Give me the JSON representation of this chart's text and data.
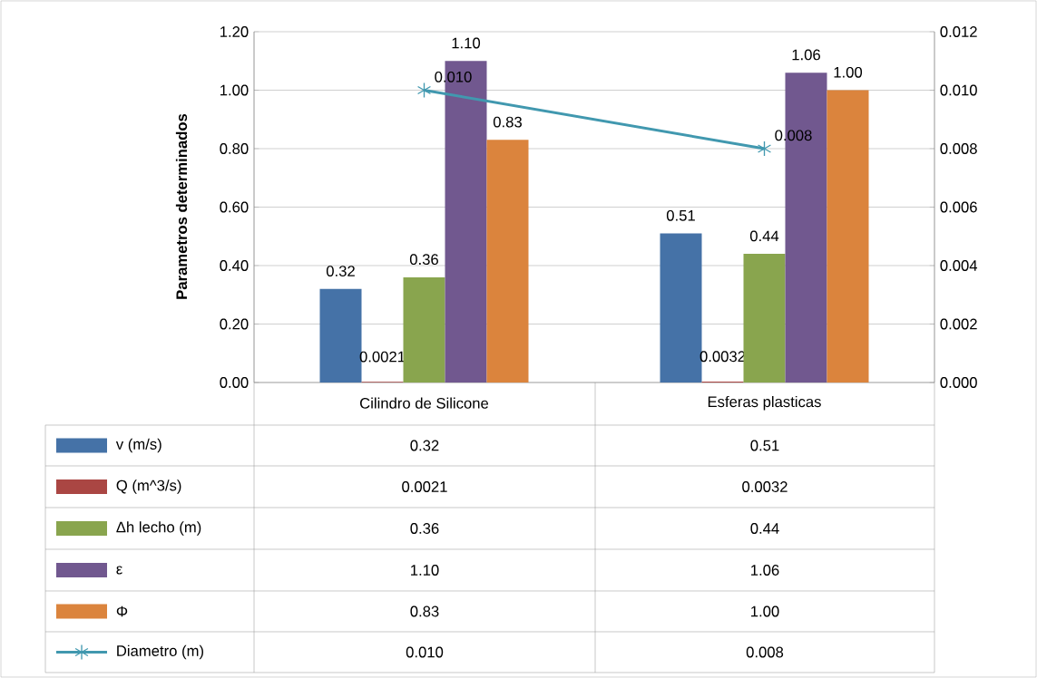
{
  "chart_data": {
    "type": "bar",
    "ylabel": "Parametros determinados",
    "categories": [
      "Cilindro de Silicone",
      "Esferas plasticas"
    ],
    "series": [
      {
        "name": "v (m/s)",
        "color": "#4572a7",
        "values": [
          0.32,
          0.51
        ],
        "value_labels": [
          "0.32",
          "0.51"
        ]
      },
      {
        "name": "Q (m^3/s)",
        "color": "#aa4643",
        "values": [
          0.0021,
          0.0032
        ],
        "value_labels": [
          "0.0021",
          "0.0032"
        ]
      },
      {
        "name": "Δh lecho (m)",
        "color": "#89a54e",
        "values": [
          0.36,
          0.44
        ],
        "value_labels": [
          "0.36",
          "0.44"
        ]
      },
      {
        "name": "ε",
        "color": "#71588f",
        "values": [
          1.1,
          1.06
        ],
        "value_labels": [
          "1.10",
          "1.06"
        ]
      },
      {
        "name": "Φ",
        "color": "#db843d",
        "values": [
          0.83,
          1.0
        ],
        "value_labels": [
          "0.83",
          "1.00"
        ]
      },
      {
        "name": "Diametro (m)",
        "color": "#4198af",
        "type": "line",
        "axis": "y2",
        "marker": "cross",
        "values": [
          0.01,
          0.008
        ],
        "value_labels": [
          "0.010",
          "0.008"
        ]
      }
    ],
    "ylim": [
      0,
      1.2
    ],
    "yticks": [
      {
        "value": 0,
        "label": "0.00"
      },
      {
        "value": 0.2,
        "label": "0.20"
      },
      {
        "value": 0.4,
        "label": "0.40"
      },
      {
        "value": 0.6,
        "label": "0.60"
      },
      {
        "value": 0.8,
        "label": "0.80"
      },
      {
        "value": 1.0,
        "label": "1.00"
      },
      {
        "value": 1.2,
        "label": "1.20"
      }
    ],
    "y2lim": [
      0,
      0.012
    ],
    "y2ticks": [
      {
        "value": 0,
        "label": "0.000"
      },
      {
        "value": 0.002,
        "label": "0.002"
      },
      {
        "value": 0.004,
        "label": "0.004"
      },
      {
        "value": 0.006,
        "label": "0.006"
      },
      {
        "value": 0.008,
        "label": "0.008"
      },
      {
        "value": 0.01,
        "label": "0.010"
      },
      {
        "value": 0.012,
        "label": "0.012"
      }
    ],
    "grid": "y",
    "legend": "bottom"
  }
}
